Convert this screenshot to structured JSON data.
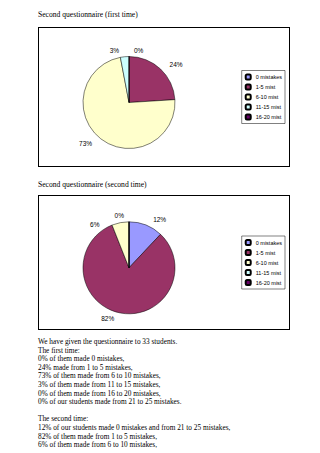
{
  "chart_data": [
    {
      "type": "pie",
      "title": "Second questionnaire (first time)",
      "categories": [
        "0 mistakes",
        "1-5 mist",
        "6-10 mist",
        "11-15 mist",
        "16-20 mist"
      ],
      "values": [
        0,
        24,
        73,
        3,
        0
      ],
      "value_labels": [
        null,
        "24%",
        "73%",
        "3%",
        "0%"
      ],
      "colors": [
        "#9999ff",
        "#993366",
        "#ffffcc",
        "#ccffff",
        "#660066"
      ],
      "data_labels": true,
      "legend": "right"
    },
    {
      "type": "pie",
      "title": "Second questionnaire (second time)",
      "categories": [
        "0 mistakes",
        "1-5 mist",
        "6-10 mist",
        "11-15 mist",
        "16-20 mist"
      ],
      "values": [
        12,
        82,
        6,
        0,
        0
      ],
      "value_labels": [
        "12%",
        "82%",
        "6%",
        "0%",
        null
      ],
      "colors": [
        "#9999ff",
        "#993366",
        "#ffffcc",
        "#ccffff",
        "#660066"
      ],
      "data_labels": true,
      "legend": "right"
    }
  ],
  "paragraphs": [
    [
      "We have given the questionnaire to 33 students.",
      "The first time:",
      "0% of them made 0 mistakes,",
      "24% made from 1 to 5 mistakes,",
      "73% of them made from 6 to 10 mistakes,",
      "3% of them made from 11 to 15 mistakes,",
      "0% of them made from 16 to 20 mistakes,",
      "0% of our students made from 21 to 25 mistakes."
    ],
    [
      "The second time:",
      "12% of our students made 0 mistakes and from 21 to 25 mistakes,",
      "82% of them made from 1 to 5 mistakes,",
      "6% of them made from 6 to 10 mistakes,"
    ]
  ]
}
